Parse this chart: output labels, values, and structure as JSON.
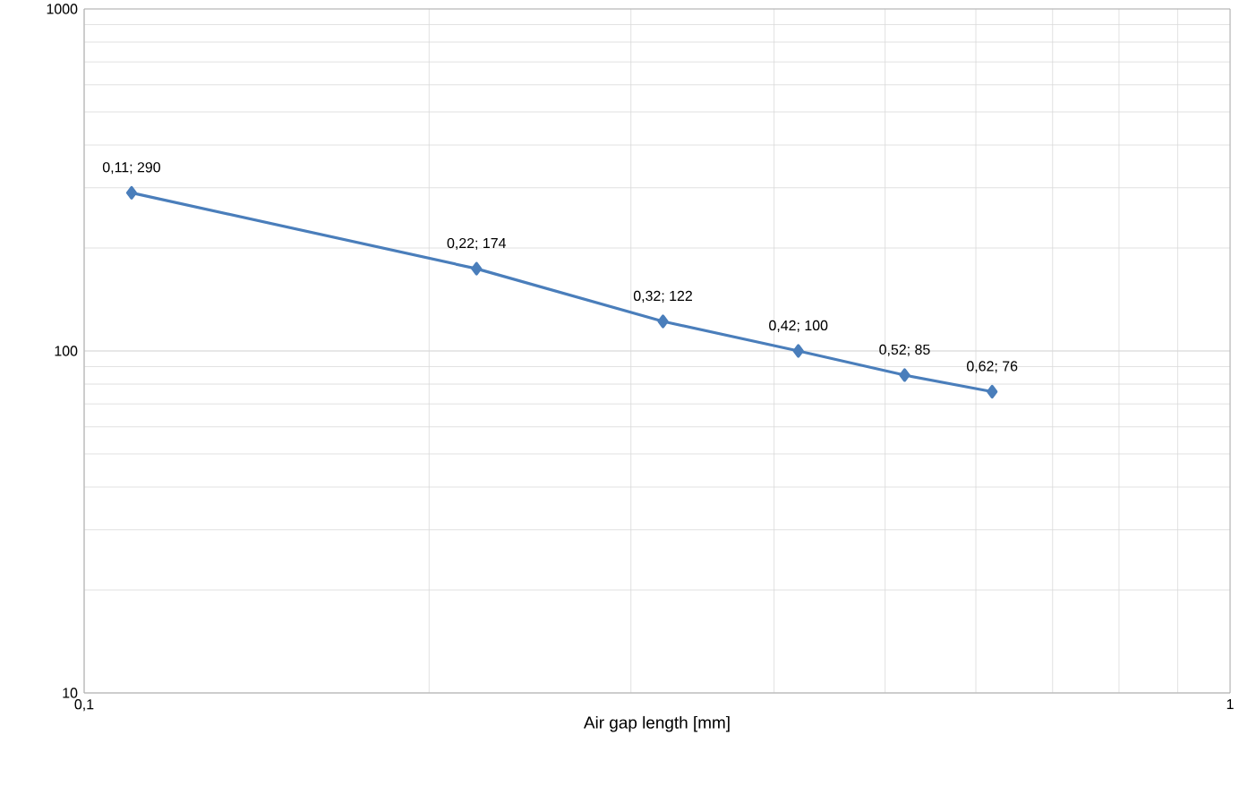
{
  "chart_data": {
    "type": "line",
    "xlabel": "Air gap length [mm]",
    "log": "xy",
    "grid": true,
    "marker": "diamond",
    "line_style": "solid",
    "x": [
      0.11,
      0.22,
      0.32,
      0.42,
      0.52,
      0.62
    ],
    "series": [
      {
        "color": "#4a7ebb",
        "values": [
          290,
          174,
          122,
          100,
          85,
          76
        ],
        "value_labels": [
          "0,11; 290",
          "0,22; 174",
          "0,32; 122",
          "0,42; 100",
          "0,52; 85",
          "0,62; 76"
        ]
      }
    ],
    "xlim": [
      0.1,
      1
    ],
    "ylim": [
      10,
      1000
    ],
    "xticks": [
      {
        "value": 0.1,
        "label": "0,1"
      },
      {
        "value": 1,
        "label": "1"
      }
    ],
    "yticks": [
      10,
      100,
      1000
    ]
  }
}
